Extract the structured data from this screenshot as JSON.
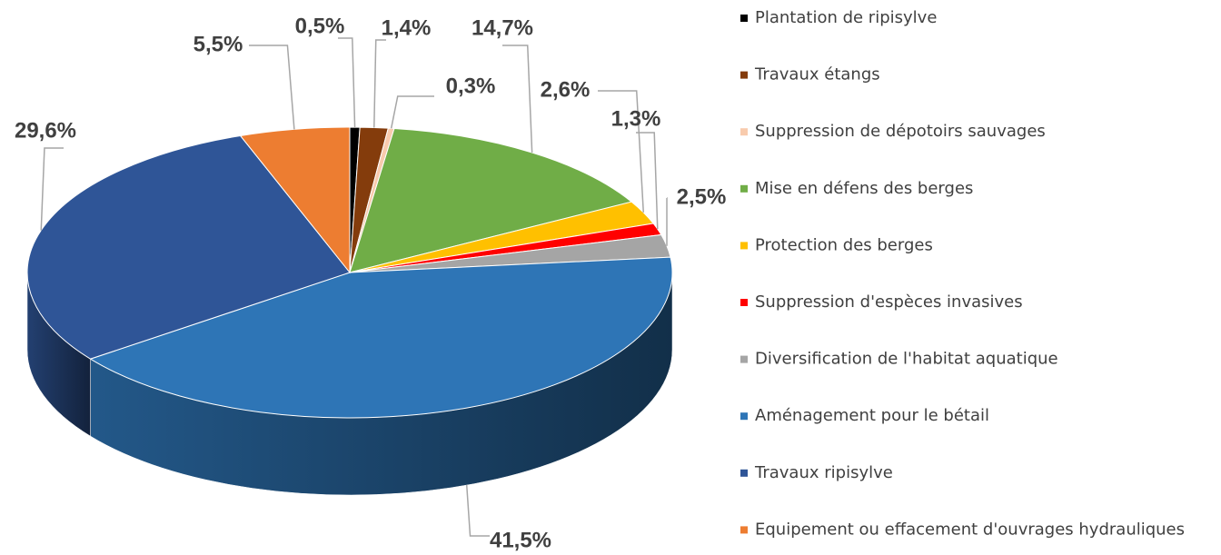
{
  "chart_data": {
    "type": "pie3d",
    "categories": [
      "Plantation de ripisylve",
      "Travaux étangs",
      "Suppression de dépotoirs sauvages",
      "Mise en défens des berges",
      "Protection des berges",
      "Suppression d'espèces invasives",
      "Diversification de l'habitat aquatique",
      "Aménagement pour le bétail",
      "Travaux ripisylve",
      "Equipement ou effacement d'ouvrages hydrauliques"
    ],
    "values": [
      0.5,
      1.4,
      0.3,
      14.7,
      2.6,
      1.3,
      2.5,
      41.5,
      29.6,
      5.5
    ],
    "value_labels": [
      "0,5%",
      "1,4%",
      "0,3%",
      "14,7%",
      "2,6%",
      "1,3%",
      "2,5%",
      "41,5%",
      "29,6%",
      "5,5%"
    ],
    "colors": [
      "#000000",
      "#843c0c",
      "#f8cbad",
      "#70ad47",
      "#ffc000",
      "#ff0000",
      "#a5a5a5",
      "#2e75b6",
      "#2f5597",
      "#ed7d31"
    ],
    "legend": "right"
  }
}
